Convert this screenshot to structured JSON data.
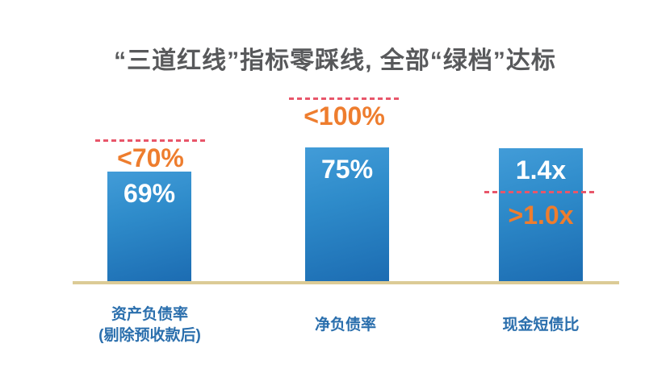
{
  "title": "“三道红线”指标零踩线, 全部“绿档”达标",
  "chart_data": {
    "type": "bar",
    "title": "“三道红线”指标零踩线, 全部“绿档”达标",
    "orientation": "vertical",
    "grid": false,
    "axes_visible": false,
    "legend": "none",
    "baseline_color": "#dccb96",
    "bar_color_gradient": [
      "#429cd8",
      "#1c6cb2"
    ],
    "threshold_line_color": "#e8566a",
    "threshold_text_color": "#ee7d2e",
    "value_text_color": "#ffffff",
    "category_text_color": "#2b6fad",
    "title_color": "#58595b",
    "categories": [
      "资产负债率 (剔除预收款后)",
      "净负债率",
      "现金短债比"
    ],
    "values": [
      69,
      75,
      1.4
    ],
    "thresholds": [
      70,
      100,
      1.0
    ],
    "bars": [
      {
        "category_line1": "资产负债率",
        "category_line2": "(剔除预收款后)",
        "value": 69,
        "unit": "%",
        "value_label": "69%",
        "threshold": 70,
        "threshold_label": "<70%",
        "threshold_relation": "less_than",
        "threshold_line_position": "above_bar",
        "status": "pass"
      },
      {
        "category_line1": "净负债率",
        "category_line2": "",
        "value": 75,
        "unit": "%",
        "value_label": "75%",
        "threshold": 100,
        "threshold_label": "<100%",
        "threshold_relation": "less_than",
        "threshold_line_position": "above_bar",
        "status": "pass"
      },
      {
        "category_line1": "现金短债比",
        "category_line2": "",
        "value": 1.4,
        "unit": "x",
        "value_label": "1.4x",
        "threshold": 1.0,
        "threshold_label": ">1.0x",
        "threshold_relation": "greater_than",
        "threshold_line_position": "inside_bar",
        "status": "pass"
      }
    ]
  }
}
